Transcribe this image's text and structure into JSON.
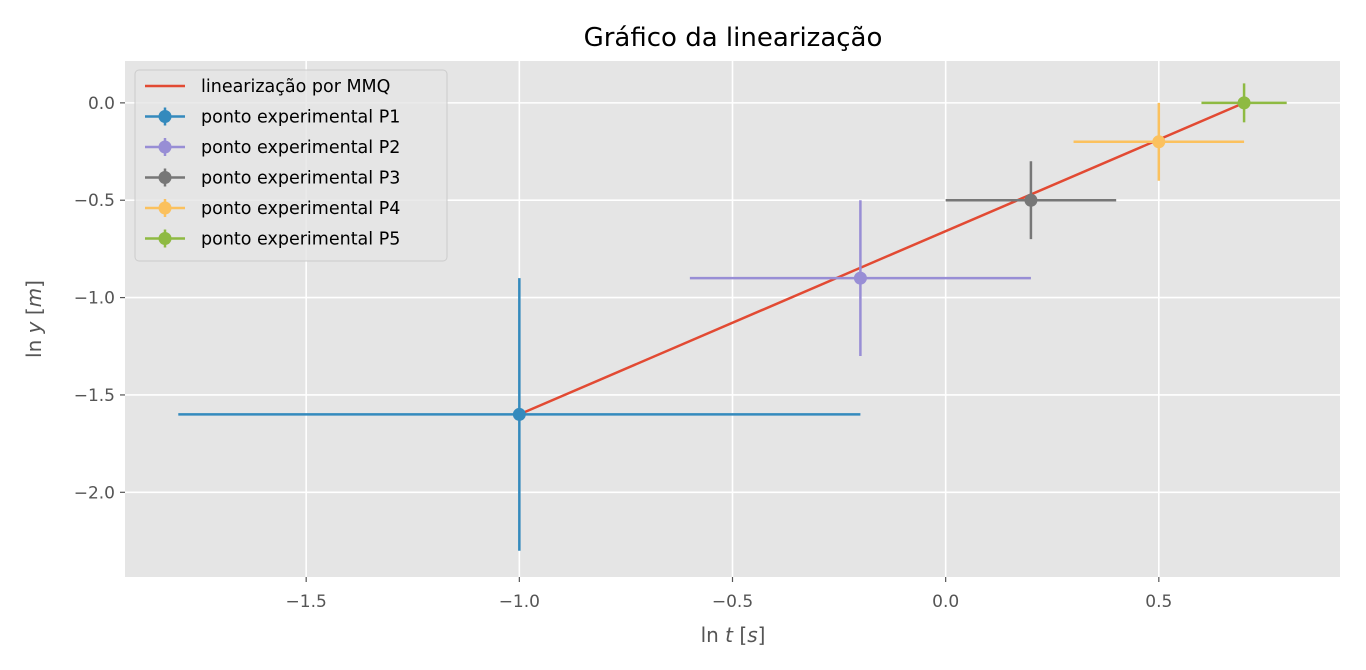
{
  "chart_data": {
    "type": "scatter",
    "title": "Gráfico da linearização",
    "xlabel": "ln t [s]",
    "ylabel": "ln y [m]",
    "xlim": [
      -1.925,
      0.925
    ],
    "ylim": [
      -2.435,
      0.215
    ],
    "xticks": [
      -1.5,
      -1.0,
      -0.5,
      0.0,
      0.5
    ],
    "xtick_labels": [
      "−1.5",
      "−1.0",
      "−0.5",
      "0.0",
      "0.5"
    ],
    "yticks": [
      0.0,
      -0.5,
      -1.0,
      -1.5,
      -2.0
    ],
    "ytick_labels": [
      "0.0",
      "−0.5",
      "−1.0",
      "−1.5",
      "−2.0"
    ],
    "grid": true,
    "legend_position": "top-left",
    "fit_line": {
      "name": "linearização por MMQ",
      "color": "#E24A33",
      "x": [
        -1.0,
        0.7
      ],
      "y": [
        -1.6,
        0.0
      ]
    },
    "series": [
      {
        "name": "ponto experimental P1",
        "color": "#348ABD",
        "x": -1.0,
        "y": -1.6,
        "xerr": 0.8,
        "yerr": 0.7
      },
      {
        "name": "ponto experimental P2",
        "color": "#988ED5",
        "x": -0.2,
        "y": -0.9,
        "xerr": 0.4,
        "yerr": 0.4
      },
      {
        "name": "ponto experimental P3",
        "color": "#777777",
        "x": 0.2,
        "y": -0.5,
        "xerr": 0.2,
        "yerr": 0.2
      },
      {
        "name": "ponto experimental P4",
        "color": "#FBC15E",
        "x": 0.5,
        "y": -0.2,
        "xerr": 0.2,
        "yerr": 0.2
      },
      {
        "name": "ponto experimental P5",
        "color": "#8EBA42",
        "x": 0.7,
        "y": 0.0,
        "xerr": 0.1,
        "yerr": 0.1
      }
    ]
  }
}
